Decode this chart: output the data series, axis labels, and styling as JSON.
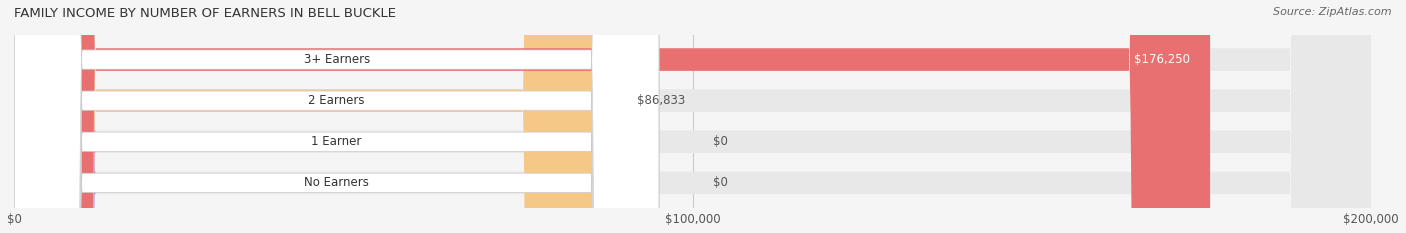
{
  "title": "FAMILY INCOME BY NUMBER OF EARNERS IN BELL BUCKLE",
  "source": "Source: ZipAtlas.com",
  "categories": [
    "No Earners",
    "1 Earner",
    "2 Earners",
    "3+ Earners"
  ],
  "values": [
    0,
    0,
    86833,
    176250
  ],
  "labels": [
    "$0",
    "$0",
    "$86,833",
    "$176,250"
  ],
  "bar_colors": [
    "#a8a8d8",
    "#f0a0b0",
    "#f5c887",
    "#e87070"
  ],
  "label_colors": [
    "#555555",
    "#555555",
    "#555555",
    "#ffffff"
  ],
  "background_color": "#f5f5f5",
  "bar_bg_color": "#e8e8e8",
  "xlim": [
    0,
    200000
  ],
  "xticks": [
    0,
    100000,
    200000
  ],
  "xtick_labels": [
    "$0",
    "$100,000",
    "$200,000"
  ],
  "bar_height": 0.55,
  "figsize": [
    14.06,
    2.33
  ],
  "dpi": 100
}
